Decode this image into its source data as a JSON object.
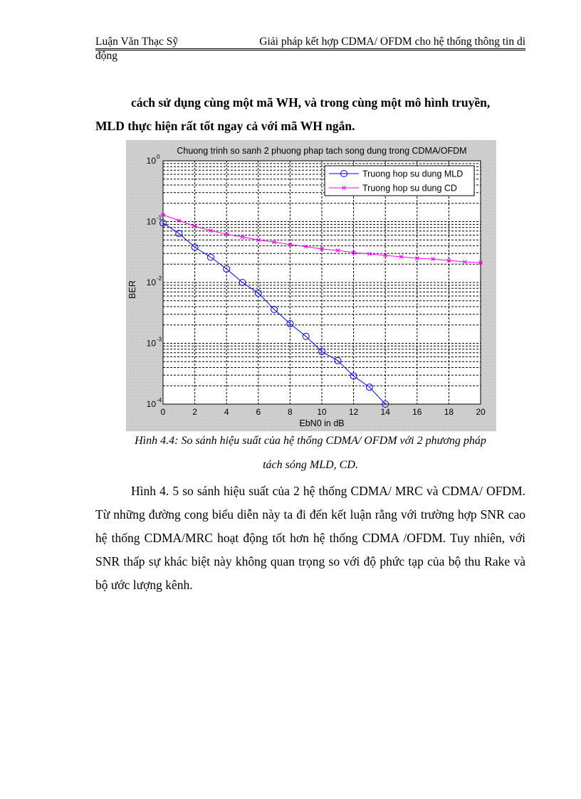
{
  "header": {
    "left": "Luận Văn Thạc Sỹ",
    "right": "Giải pháp kết hợp CDMA/ OFDM cho hệ thống thông tin di",
    "continuation": "động"
  },
  "paragraph1": {
    "line1": "cách sử dụng cùng một mã WH, và trong cùng một mô hình truyền,",
    "line2": "MLD thực hiện rất tốt ngay cả với mã WH ngắn."
  },
  "figure_caption": {
    "line1": "Hình 4.4: So sánh hiệu suất của hệ thống CDMA/ OFDM với 2 phương pháp",
    "line2": "tách sóng MLD, CD."
  },
  "paragraph2": {
    "text": "Hình 4. 5 so sánh hiệu suất của 2 hệ thống CDMA/ MRC và CDMA/ OFDM. Từ những đường cong biểu diễn này ta đi đến kết luận rằng với trường hợp SNR cao hệ thống CDMA/MRC hoạt động tốt hơn hệ thống CDMA /OFDM. Tuy nhiên, với SNR thấp sự khác biệt này không quan trọng so với độ phức tạp của bộ thu Rake và bộ ước lượng kênh."
  },
  "colors": {
    "figure_bg": "#c8c8c8",
    "mld": "#0000ff",
    "cd": "#ff00ff",
    "grid": "#000000"
  },
  "chart_data": {
    "type": "line",
    "title": "Chuong trinh so sanh 2 phuong phap tach song dung trong CDMA/OFDM",
    "xlabel": "EbN0 in dB",
    "ylabel": "BER",
    "xlim": [
      0,
      20
    ],
    "ylim": [
      0.0001,
      1
    ],
    "yscale": "log",
    "grid": true,
    "xticks": [
      0,
      2,
      4,
      6,
      8,
      10,
      12,
      14,
      16,
      18,
      20
    ],
    "yticks": [
      {
        "value": 1,
        "label": "10",
        "exp": "0"
      },
      {
        "value": 0.1,
        "label": "10",
        "exp": "-1"
      },
      {
        "value": 0.01,
        "label": "10",
        "exp": "-2"
      },
      {
        "value": 0.001,
        "label": "10",
        "exp": "-3"
      },
      {
        "value": 0.0001,
        "label": "10",
        "exp": "-4"
      }
    ],
    "legend_position": "upper right",
    "series": [
      {
        "name": "Truong hop su dung MLD",
        "color": "#0000ff",
        "marker": "circle",
        "x": [
          0,
          1,
          2,
          3,
          4,
          5,
          6,
          7,
          8,
          9,
          10,
          11,
          12,
          13,
          14
        ],
        "values": [
          0.095,
          0.064,
          0.038,
          0.026,
          0.0167,
          0.01,
          0.0067,
          0.0036,
          0.0021,
          0.0013,
          0.00073,
          0.00052,
          0.00029,
          0.00019,
          0.0001
        ]
      },
      {
        "name": "Truong hop su dung CD",
        "color": "#ff00ff",
        "marker": "x",
        "x": [
          0,
          1,
          2,
          3,
          4,
          5,
          6,
          7,
          8,
          9,
          10,
          11,
          12,
          13,
          14,
          15,
          16,
          17,
          18,
          19,
          20
        ],
        "values": [
          0.129,
          0.104,
          0.084,
          0.071,
          0.062,
          0.056,
          0.05,
          0.046,
          0.042,
          0.039,
          0.0355,
          0.0336,
          0.031,
          0.0294,
          0.0278,
          0.0264,
          0.025,
          0.0243,
          0.023,
          0.0218,
          0.0212
        ]
      }
    ]
  }
}
